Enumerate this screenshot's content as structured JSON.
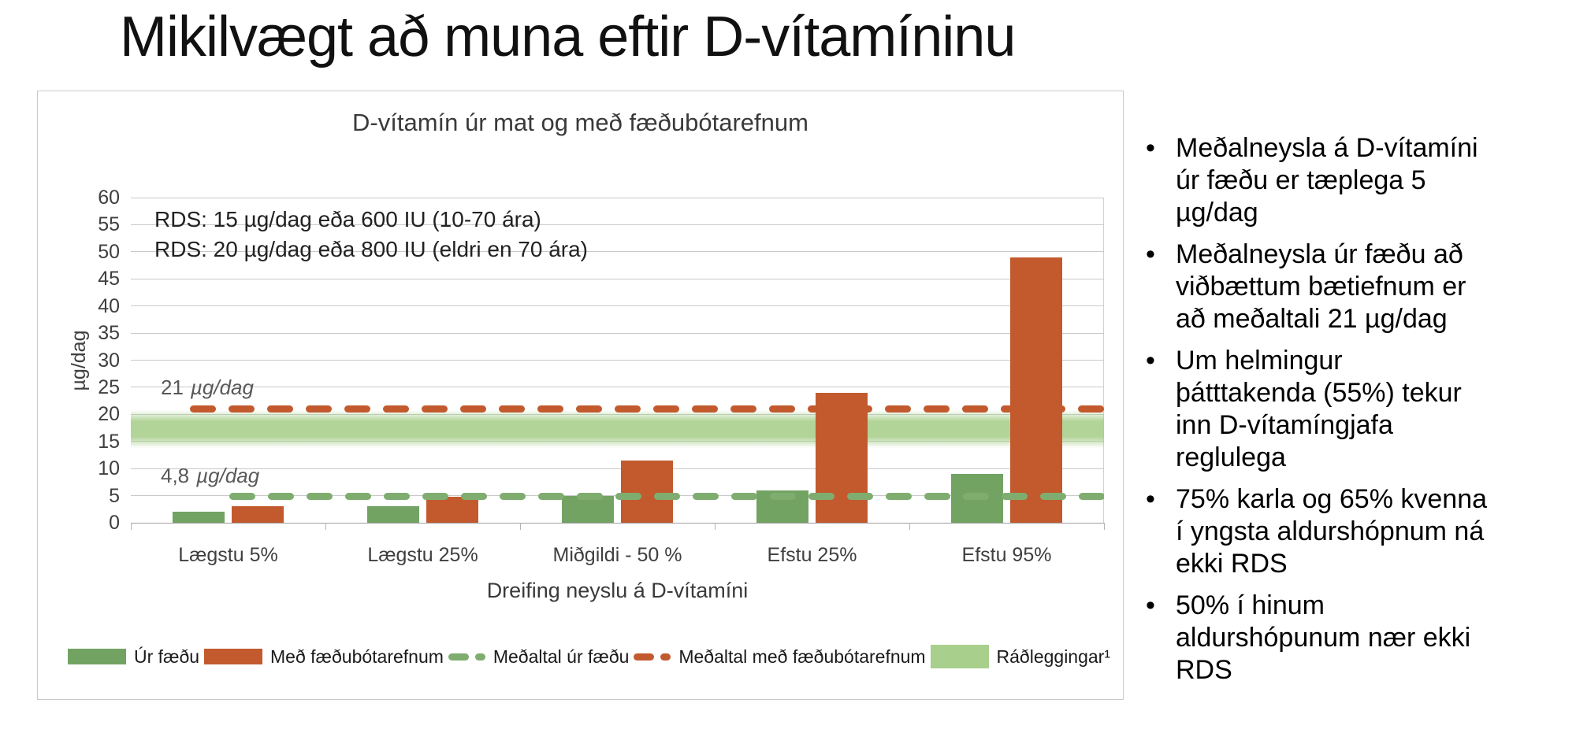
{
  "slide": {
    "title": "Mikilvægt að muna eftir D-vítamíninu"
  },
  "chart": {
    "title": "D-vítamín úr mat og með fæðubótarefnum",
    "rds_line1": "RDS: 15 µg/dag eða 600 IU (10-70 ára)",
    "rds_line2": "RDS: 20 µg/dag eða 800 IU (eldri en 70 ára)",
    "xlabel": "Dreifing neyslu á D-vítamíni",
    "ylabel": "µg/dag",
    "annotation_mean_supplements": {
      "value": "21",
      "unit": "µg/dag"
    },
    "annotation_mean_food": {
      "value": "4,8",
      "unit": "µg/dag"
    },
    "legend": [
      {
        "label": "Úr fæðu",
        "swatch": "solid",
        "color": "#72A363"
      },
      {
        "label": "Með fæðubótarefnum",
        "swatch": "solid",
        "color": "#C25A2E"
      },
      {
        "label": "Meðaltal úr fæðu",
        "swatch": "dash",
        "color": "#7FAD6F"
      },
      {
        "label": "Meðaltal með fæðubótarefnum",
        "swatch": "dash",
        "color": "#C25A2E"
      },
      {
        "label": "Ráðleggingar¹",
        "swatch": "band",
        "color": "#A9CF8D"
      }
    ]
  },
  "chart_data": {
    "type": "bar",
    "title": "D-vítamín úr mat og með fæðubótarefnum",
    "categories": [
      "Lægstu 5%",
      "Lægstu 25%",
      "Miðgildi - 50 %",
      "Efstu 25%",
      "Efstu 95%"
    ],
    "series": [
      {
        "name": "Úr fæðu",
        "color": "#72A363",
        "values": [
          2,
          3,
          5,
          6,
          9
        ]
      },
      {
        "name": "Með fæðubótarefnum",
        "color": "#C25A2E",
        "values": [
          3,
          4.8,
          11.5,
          24,
          49
        ]
      }
    ],
    "mean_lines": [
      {
        "name": "Meðaltal úr fæðu",
        "value": 4.8,
        "color": "#7FAD6F",
        "label": "4,8 µg/dag"
      },
      {
        "name": "Meðaltal með fæðubótarefnum",
        "value": 21,
        "color": "#C25A2E",
        "label": "21 µg/dag"
      }
    ],
    "band": {
      "name": "Ráðleggingar",
      "from": 15,
      "to": 20,
      "color": "#A9CF8D"
    },
    "xlabel": "Dreifing neyslu á D-vítamíni",
    "ylabel": "µg/dag",
    "ylim": [
      0,
      60
    ],
    "yticks": [
      0,
      5,
      10,
      15,
      20,
      25,
      30,
      35,
      40,
      45,
      50,
      55,
      60
    ],
    "grid": true,
    "legend_position": "bottom"
  },
  "bullets": [
    {
      "lines": [
        "Meðalneysla á D-vítamíni",
        "úr fæðu er tæplega 5",
        "µg/dag"
      ]
    },
    {
      "lines": [
        "Meðalneysla úr fæðu að",
        "viðbættum bætiefnum er",
        "að meðaltali 21 µg/dag"
      ]
    },
    {
      "lines": [
        "Um helmingur",
        "þátttakenda (55%) tekur",
        "inn D-vítamíngjafa",
        "reglulega"
      ]
    },
    {
      "lines": [
        "75% karla og 65% kvenna",
        "í yngsta aldurshópnum ná",
        "ekki RDS"
      ]
    },
    {
      "lines": [
        "50% í hinum",
        "aldurshópunum nær ekki",
        "RDS"
      ]
    }
  ]
}
